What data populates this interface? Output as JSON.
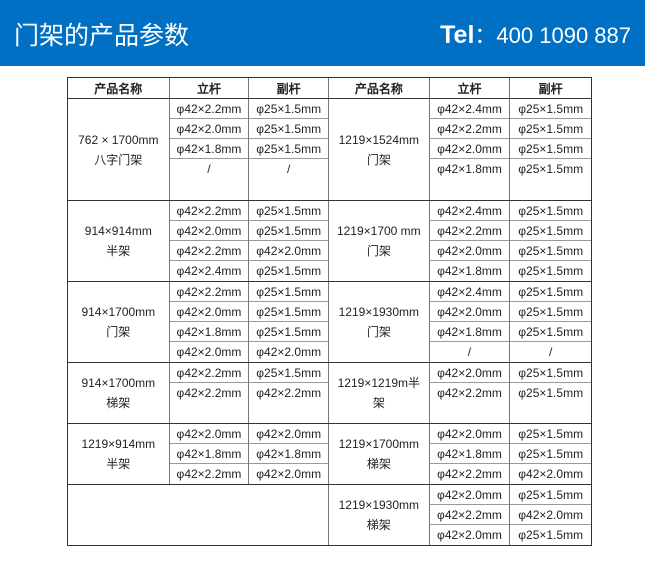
{
  "header": {
    "title": "门架的产品参数",
    "tel_label": "Tel",
    "tel_colon": "：",
    "tel_number": "400  1090  887",
    "color": "#0070c4"
  },
  "columns": [
    "产品名称",
    "立杆",
    "副杆",
    "产品名称",
    "立杆",
    "副杆"
  ],
  "blocks": [
    {
      "left": {
        "name": [
          "762 × 1700mm",
          "八字门架"
        ],
        "uprights": [
          "φ42×2.2mm",
          "φ42×2.0mm",
          "φ42×1.8mm",
          "/"
        ],
        "braces": [
          "φ25×1.5mm",
          "φ25×1.5mm",
          "φ25×1.5mm",
          "/"
        ]
      },
      "right": {
        "name": [
          "1219×1524mm",
          "门架"
        ],
        "uprights": [
          "φ42×2.4mm",
          "φ42×2.2mm",
          "φ42×2.0mm",
          "φ42×1.8mm"
        ],
        "braces": [
          "φ25×1.5mm",
          "φ25×1.5mm",
          "φ25×1.5mm",
          "φ25×1.5mm"
        ]
      }
    },
    {
      "left": {
        "name": [
          "914×914mm",
          "半架"
        ],
        "uprights": [
          "φ42×2.2mm",
          "φ42×2.0mm",
          "φ42×2.2mm",
          "φ42×2.4mm"
        ],
        "braces": [
          "φ25×1.5mm",
          "φ25×1.5mm",
          "φ42×2.0mm",
          "φ25×1.5mm"
        ]
      },
      "right": {
        "name": [
          "1219×1700 mm",
          "门架"
        ],
        "uprights": [
          "φ42×2.4mm",
          "φ42×2.2mm",
          "φ42×2.0mm",
          "φ42×1.8mm"
        ],
        "braces": [
          "φ25×1.5mm",
          "φ25×1.5mm",
          "φ25×1.5mm",
          "φ25×1.5mm"
        ]
      }
    },
    {
      "left": {
        "name": [
          "914×1700mm",
          "门架"
        ],
        "uprights": [
          "φ42×2.2mm",
          "φ42×2.0mm",
          "φ42×1.8mm",
          "φ42×2.0mm"
        ],
        "braces": [
          "φ25×1.5mm",
          "φ25×1.5mm",
          "φ25×1.5mm",
          "φ42×2.0mm"
        ]
      },
      "right": {
        "name": [
          "1219×1930mm",
          "门架"
        ],
        "uprights": [
          "φ42×2.4mm",
          "φ42×2.0mm",
          "φ42×1.8mm",
          "/"
        ],
        "braces": [
          "φ25×1.5mm",
          "φ25×1.5mm",
          "φ25×1.5mm",
          "/"
        ]
      }
    },
    {
      "left": {
        "name": [
          "914×1700mm",
          "梯架"
        ],
        "uprights": [
          "φ42×2.2mm",
          "φ42×2.2mm"
        ],
        "braces": [
          "φ25×1.5mm",
          "φ42×2.2mm"
        ]
      },
      "right": {
        "name": [
          "1219×1219m半",
          "架"
        ],
        "uprights": [
          "φ42×2.0mm",
          "φ42×2.2mm"
        ],
        "braces": [
          "φ25×1.5mm",
          "φ25×1.5mm"
        ]
      }
    },
    {
      "left": {
        "name": [
          "1219×914mm",
          "半架"
        ],
        "uprights": [
          "φ42×2.0mm",
          "φ42×1.8mm",
          "φ42×2.2mm"
        ],
        "braces": [
          "φ42×2.0mm",
          "φ42×1.8mm",
          "φ42×2.0mm"
        ]
      },
      "right": {
        "name": [
          "1219×1700mm",
          "梯架"
        ],
        "uprights": [
          "φ42×2.0mm",
          "φ42×1.8mm",
          "φ42×2.2mm"
        ],
        "braces": [
          "φ25×1.5mm",
          "φ25×1.5mm",
          "φ42×2.0mm"
        ]
      }
    },
    {
      "left": {
        "name": [],
        "uprights": [],
        "braces": []
      },
      "right": {
        "name": [
          "1219×1930mm",
          "梯架"
        ],
        "uprights": [
          "φ42×2.0mm",
          "φ42×2.2mm",
          "φ42×2.0mm"
        ],
        "braces": [
          "φ25×1.5mm",
          "φ42×2.0mm",
          "φ25×1.5mm"
        ]
      }
    }
  ]
}
